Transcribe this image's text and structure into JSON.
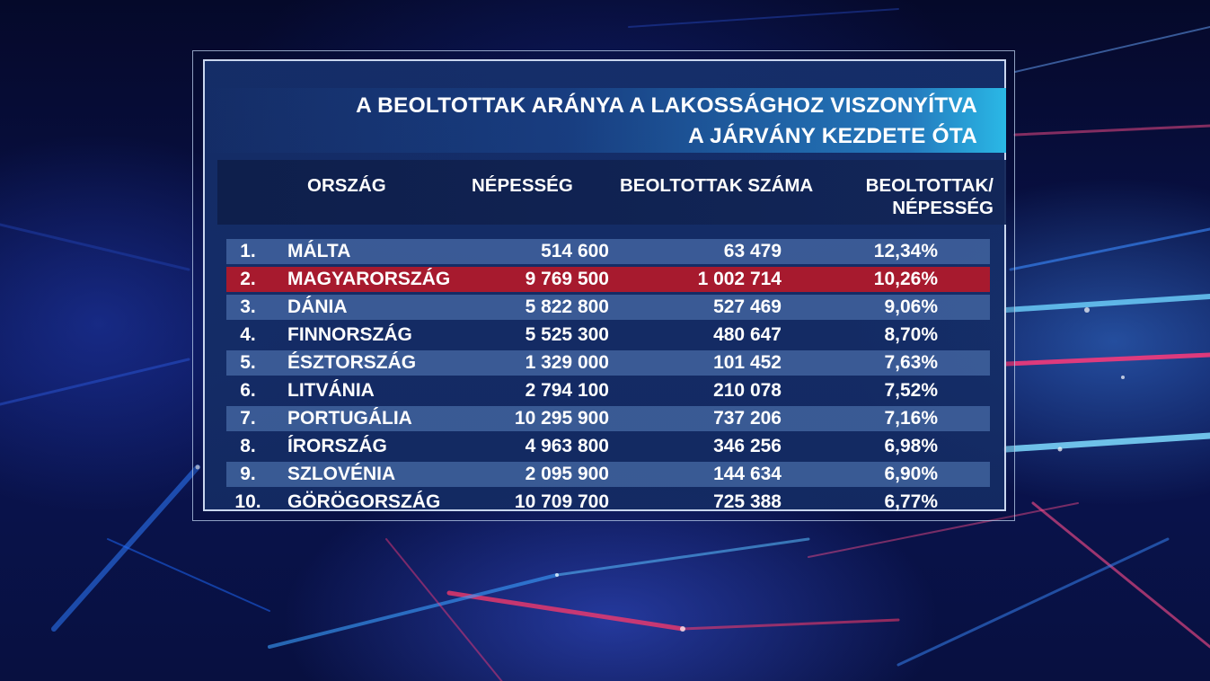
{
  "title": {
    "line1": "A BEOLTOTTAK ARÁNYA A LAKOSSÁGHOZ VISZONYÍTVA",
    "line2": "A JÁRVÁNY KEZDETE ÓTA"
  },
  "headers": {
    "country": "ORSZÁG",
    "population": "NÉPESSÉG",
    "vaccinated": "BEOLTOTTAK SZÁMA",
    "ratio_line1": "BEOLTOTTAK/",
    "ratio_line2": "NÉPESSÉG"
  },
  "rows": [
    {
      "rank": "1.",
      "country": "MÁLTA",
      "population": "514 600",
      "vaccinated": "63 479",
      "ratio": "12,34%"
    },
    {
      "rank": "2.",
      "country": "MAGYARORSZÁG",
      "population": "9 769 500",
      "vaccinated": "1 002 714",
      "ratio": "10,26%"
    },
    {
      "rank": "3.",
      "country": "DÁNIA",
      "population": "5 822 800",
      "vaccinated": "527 469",
      "ratio": "9,06%"
    },
    {
      "rank": "4.",
      "country": "FINNORSZÁG",
      "population": "5 525 300",
      "vaccinated": "480 647",
      "ratio": "8,70%"
    },
    {
      "rank": "5.",
      "country": "ÉSZTORSZÁG",
      "population": "1 329 000",
      "vaccinated": "101 452",
      "ratio": "7,63%"
    },
    {
      "rank": "6.",
      "country": "LITVÁNIA",
      "population": "2 794 100",
      "vaccinated": "210 078",
      "ratio": "7,52%"
    },
    {
      "rank": "7.",
      "country": "PORTUGÁLIA",
      "population": "10 295 900",
      "vaccinated": "737 206",
      "ratio": "7,16%"
    },
    {
      "rank": "8.",
      "country": "ÍRORSZÁG",
      "population": "4 963 800",
      "vaccinated": "346 256",
      "ratio": "6,98%"
    },
    {
      "rank": "9.",
      "country": "SZLOVÉNIA",
      "population": "2 095 900",
      "vaccinated": "144 634",
      "ratio": "6,90%"
    },
    {
      "rank": "10.",
      "country": "GÖRÖGORSZÁG",
      "population": "10 709 700",
      "vaccinated": "725 388",
      "ratio": "6,77%"
    }
  ],
  "colors": {
    "highlight_row": "#a71a2e",
    "stripe_row": "#5a82be",
    "title_accent": "#2ab8e6"
  }
}
